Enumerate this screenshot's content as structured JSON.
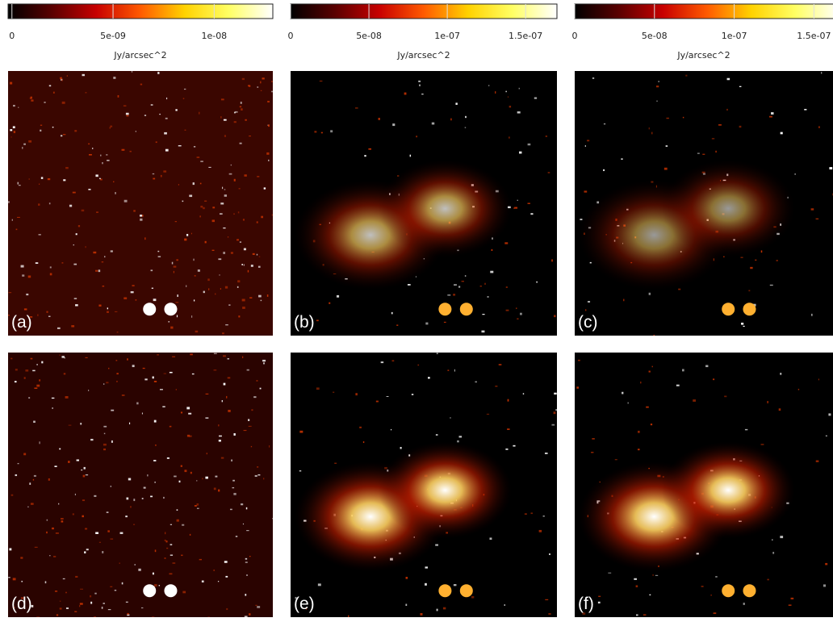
{
  "chart_data": [
    {
      "type": "colorbar",
      "xlabel": "Jy/arcsec^2",
      "xlim": [
        -1.9e-10,
        1.29e-08
      ],
      "xticks": [
        0,
        {
          "value": 5e-09,
          "label": "5e-09"
        },
        {
          "value": 1e-08,
          "label": "1e-08"
        }
      ],
      "colormap": [
        "#000000",
        "#5a0000",
        "#c80000",
        "#ff5a00",
        "#ffd200",
        "#ffff64",
        "#ffffff"
      ]
    },
    {
      "type": "colorbar",
      "xlabel": "Jy/arcsec^2",
      "xlim": [
        0,
        1.7e-07
      ],
      "xticks": [
        0,
        {
          "value": 5e-08,
          "label": "5e-08"
        },
        {
          "value": 1e-07,
          "label": "1e-07"
        },
        {
          "value": 1.5e-07,
          "label": "1.5e-07"
        }
      ],
      "colormap": [
        "#000000",
        "#5a0000",
        "#c80000",
        "#ff5a00",
        "#ffd200",
        "#ffff64",
        "#ffffff"
      ]
    },
    {
      "type": "colorbar",
      "xlabel": "Jy/arcsec^2",
      "xlim": [
        0,
        1.66e-07
      ],
      "xticks": [
        0,
        {
          "value": 5e-08,
          "label": "5e-08"
        },
        {
          "value": 1e-07,
          "label": "1e-07"
        },
        {
          "value": 1.5e-07,
          "label": "1.5e-07"
        }
      ],
      "colormap": [
        "#000000",
        "#5a0000",
        "#c80000",
        "#ff5a00",
        "#ffd200",
        "#ffff64",
        "#ffffff"
      ]
    }
  ],
  "panels": [
    {
      "label": "(a)"
    },
    {
      "label": "(b)"
    },
    {
      "label": "(c)"
    },
    {
      "label": "(d)"
    },
    {
      "label": "(e)"
    },
    {
      "label": "(f)"
    }
  ]
}
